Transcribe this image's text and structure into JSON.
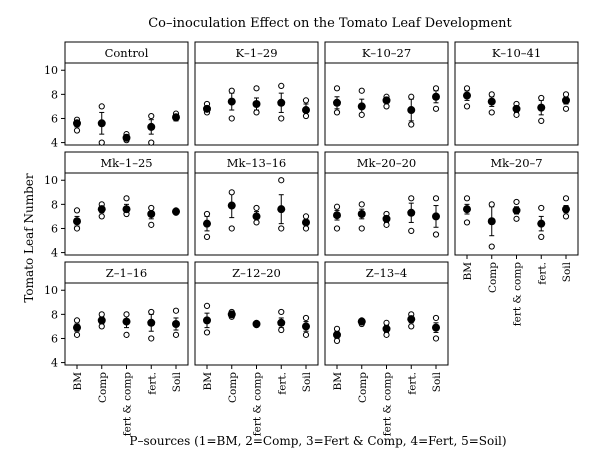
{
  "chart_data": {
    "type": "scatter",
    "title": "Co–inoculation Effect on the Tomato Leaf Development",
    "xlabel": "P–sources (1=BM, 2=Comp, 3=Fert & Comp, 4=Fert, 5=Soil)",
    "ylabel": "Tomato Leaf Number",
    "categories": [
      "BM",
      "Comp",
      "fert & comp",
      "fert.",
      "Soil"
    ],
    "yticks": [
      4,
      6,
      8,
      10
    ],
    "ylim": [
      3.8,
      10.6
    ],
    "layout": "facet grid 3 rows x 4 columns",
    "panels": [
      {
        "name": "Control",
        "mean": [
          5.6,
          5.6,
          4.4,
          5.3,
          6.1
        ],
        "err": [
          0.3,
          0.9,
          0.2,
          0.6,
          0.3
        ],
        "obs": [
          [
            5.0,
            5.9
          ],
          [
            4.0,
            7.0
          ],
          [
            4.2,
            4.7
          ],
          [
            4.0,
            6.2
          ],
          [
            6.0,
            6.4
          ]
        ]
      },
      {
        "name": "K–1–29",
        "mean": [
          6.8,
          7.4,
          7.2,
          7.3,
          6.7
        ],
        "err": [
          0.2,
          0.7,
          0.5,
          0.8,
          0.5
        ],
        "obs": [
          [
            6.5,
            7.2
          ],
          [
            6.0,
            8.3
          ],
          [
            6.5,
            8.5
          ],
          [
            6.0,
            8.7
          ],
          [
            6.2,
            7.5
          ]
        ]
      },
      {
        "name": "K–10–27",
        "mean": [
          7.3,
          7.0,
          7.5,
          6.7,
          7.8
        ],
        "err": [
          0.5,
          0.6,
          0.2,
          0.9,
          0.5
        ],
        "obs": [
          [
            6.5,
            8.5
          ],
          [
            6.3,
            8.3
          ],
          [
            7.0,
            7.8
          ],
          [
            5.5,
            7.8
          ],
          [
            6.8,
            8.5
          ]
        ]
      },
      {
        "name": "K–10–41",
        "mean": [
          7.9,
          7.4,
          6.8,
          6.9,
          7.5
        ],
        "err": [
          0.4,
          0.4,
          0.3,
          0.6,
          0.3
        ],
        "obs": [
          [
            7.0,
            8.5
          ],
          [
            6.5,
            8.0
          ],
          [
            6.3,
            7.2
          ],
          [
            5.8,
            7.7
          ],
          [
            6.8,
            8.0
          ]
        ]
      },
      {
        "name": "Mk–1–25",
        "mean": [
          6.6,
          7.6,
          7.6,
          7.2,
          7.4
        ],
        "err": [
          0.4,
          0.3,
          0.4,
          0.4,
          0.1
        ],
        "obs": [
          [
            6.0,
            7.5
          ],
          [
            7.0,
            8.0
          ],
          [
            7.2,
            8.5
          ],
          [
            6.3,
            7.7
          ],
          [
            7.3,
            7.5
          ]
        ]
      },
      {
        "name": "Mk–13–16",
        "mean": [
          6.4,
          7.9,
          7.0,
          7.6,
          6.5
        ],
        "err": [
          0.6,
          1.0,
          0.4,
          1.2,
          0.4
        ],
        "obs": [
          [
            5.3,
            7.2
          ],
          [
            6.0,
            9.0
          ],
          [
            6.5,
            7.7
          ],
          [
            6.0,
            10.0
          ],
          [
            6.0,
            7.0
          ]
        ]
      },
      {
        "name": "Mk–20–20",
        "mean": [
          7.1,
          7.2,
          6.8,
          7.3,
          7.0
        ],
        "err": [
          0.4,
          0.4,
          0.3,
          0.8,
          0.9
        ],
        "obs": [
          [
            6.0,
            7.8
          ],
          [
            6.0,
            8.0
          ],
          [
            6.3,
            7.2
          ],
          [
            5.8,
            8.5
          ],
          [
            5.5,
            8.5
          ]
        ]
      },
      {
        "name": "Mk–20–7",
        "mean": [
          7.6,
          6.6,
          7.5,
          6.4,
          7.6
        ],
        "err": [
          0.4,
          1.2,
          0.3,
          0.6,
          0.3
        ],
        "obs": [
          [
            6.5,
            8.5
          ],
          [
            4.5,
            8.0
          ],
          [
            6.8,
            8.2
          ],
          [
            5.3,
            7.7
          ],
          [
            7.0,
            8.5
          ]
        ]
      },
      {
        "name": "Z–1–16",
        "mean": [
          6.9,
          7.5,
          7.4,
          7.3,
          7.2
        ],
        "err": [
          0.3,
          0.3,
          0.5,
          0.7,
          0.5
        ],
        "obs": [
          [
            6.3,
            7.5
          ],
          [
            7.0,
            8.0
          ],
          [
            6.3,
            8.0
          ],
          [
            6.0,
            8.2
          ],
          [
            6.3,
            8.3
          ]
        ]
      },
      {
        "name": "Z–12–20",
        "mean": [
          7.5,
          8.0,
          7.2,
          7.3,
          7.0
        ],
        "err": [
          0.6,
          0.2,
          0.1,
          0.4,
          0.4
        ],
        "obs": [
          [
            6.5,
            8.7
          ],
          [
            7.8,
            8.2
          ],
          [
            7.1,
            7.3
          ],
          [
            6.7,
            8.2
          ],
          [
            6.3,
            7.7
          ]
        ]
      },
      {
        "name": "Z–13–4",
        "mean": [
          6.3,
          7.4,
          6.8,
          7.6,
          6.9
        ],
        "err": [
          0.3,
          0.1,
          0.3,
          0.3,
          0.4
        ],
        "obs": [
          [
            5.8,
            6.8
          ],
          [
            7.2,
            7.5
          ],
          [
            6.3,
            7.3
          ],
          [
            7.0,
            8.0
          ],
          [
            6.0,
            7.7
          ]
        ]
      }
    ]
  }
}
